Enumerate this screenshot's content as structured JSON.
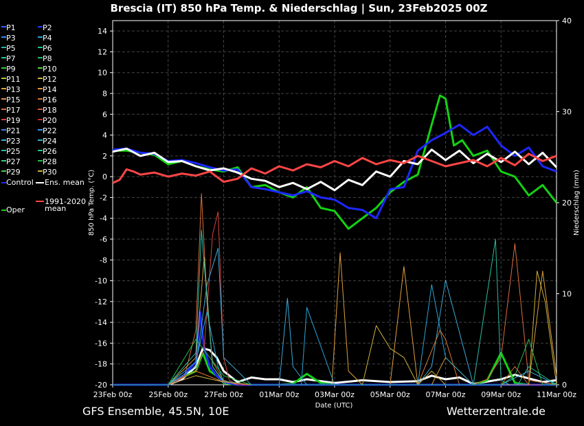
{
  "chart_data": {
    "type": "line",
    "title": "Brescia  (IT)  850 hPa Temp. & Niederschlag | Sun, 23Feb2025 00Z",
    "footer_left": "GFS Ensemble, 45.5N, 10E",
    "footer_right": "Wetterzentrale.de",
    "xlabel": "Date (UTC)",
    "ylabel": "850 hPa Temp. (°C)",
    "y2label": "Niederschlag (mm)",
    "ylim": [
      -20,
      15
    ],
    "y2lim": [
      0,
      40
    ],
    "xlim_days": [
      0,
      16
    ],
    "grid": true,
    "x_ticks": [
      {
        "day": 0,
        "label": "23Feb 00z"
      },
      {
        "day": 2,
        "label": "25Feb 00z"
      },
      {
        "day": 4,
        "label": "27Feb 00z"
      },
      {
        "day": 6,
        "label": "01Mar 00z"
      },
      {
        "day": 8,
        "label": "03Mar 00z"
      },
      {
        "day": 10,
        "label": "05Mar 00z"
      },
      {
        "day": 12,
        "label": "07Mar 00z"
      },
      {
        "day": 14,
        "label": "09Mar 00z"
      },
      {
        "day": 16,
        "label": "11Mar 00z"
      }
    ],
    "y_ticks": [
      -20,
      -18,
      -16,
      -14,
      -12,
      -10,
      -8,
      -6,
      -4,
      -2,
      0,
      2,
      4,
      6,
      8,
      10,
      12,
      14
    ],
    "y_tick_labels": [
      "-20",
      "-18",
      "-16",
      "-14",
      "-12",
      "-10",
      "-8",
      "-6",
      "-4",
      "-2",
      "0",
      "2",
      "4",
      "6",
      "8",
      "10",
      "12",
      "14"
    ],
    "y2_ticks": [
      0,
      10,
      20,
      30,
      40
    ],
    "y2_tick_labels": [
      "0",
      "10",
      "20",
      "30",
      "40"
    ],
    "legend_placement": "left",
    "legend": [
      {
        "label": "P1",
        "color": "#3c5cff"
      },
      {
        "label": "P2",
        "color": "#1f3cff"
      },
      {
        "label": "P3",
        "color": "#2a8cff"
      },
      {
        "label": "P4",
        "color": "#2aa6d8"
      },
      {
        "label": "P5",
        "color": "#26b4b4"
      },
      {
        "label": "P6",
        "color": "#19c88c"
      },
      {
        "label": "P7",
        "color": "#26c4a0"
      },
      {
        "label": "P8",
        "color": "#20c070"
      },
      {
        "label": "P9",
        "color": "#3ccc3c"
      },
      {
        "label": "P10",
        "color": "#5ad23c"
      },
      {
        "label": "P11",
        "color": "#b4c83c"
      },
      {
        "label": "P12",
        "color": "#d2b43c"
      },
      {
        "label": "P13",
        "color": "#e1a03c"
      },
      {
        "label": "P14",
        "color": "#e6963c"
      },
      {
        "label": "P15",
        "color": "#e68c46"
      },
      {
        "label": "P16",
        "color": "#dc7832"
      },
      {
        "label": "P17",
        "color": "#dc6e3c"
      },
      {
        "label": "P18",
        "color": "#d25a3c"
      },
      {
        "label": "P19",
        "color": "#d2463c"
      },
      {
        "label": "P20",
        "color": "#be3228"
      },
      {
        "label": "P21",
        "color": "#3c82dc"
      },
      {
        "label": "P22",
        "color": "#3c96e6"
      },
      {
        "label": "P23",
        "color": "#3caadc"
      },
      {
        "label": "P24",
        "color": "#32b4c8"
      },
      {
        "label": "P25",
        "color": "#2dbea0"
      },
      {
        "label": "P26",
        "color": "#28c88c"
      },
      {
        "label": "P27",
        "color": "#32d278"
      },
      {
        "label": "P28",
        "color": "#28be50"
      },
      {
        "label": "P29",
        "color": "#46d246"
      },
      {
        "label": "P30",
        "color": "#c8b43c"
      },
      {
        "label": "Control",
        "color": "#1e28ff"
      },
      {
        "label": "Ens. mean",
        "color": "#ffffff"
      },
      {
        "label": "Oper",
        "color": "#14d214"
      },
      {
        "label": "1991-2020 mean",
        "color": "#ff4646"
      }
    ],
    "series": [
      {
        "name": "Oper",
        "color": "#14d214",
        "x": [
          0,
          0.5,
          1,
          1.5,
          2,
          2.5,
          3,
          3.5,
          4,
          4.5,
          5,
          5.5,
          6,
          6.5,
          7,
          7.5,
          8,
          8.5,
          9,
          9.5,
          10,
          10.5,
          11,
          11.5,
          11.8,
          12,
          12.3,
          12.6,
          13,
          13.5,
          14,
          14.5,
          15,
          15.5,
          16
        ],
        "y": [
          2.5,
          2.5,
          2.3,
          2.1,
          1.2,
          1.5,
          1.0,
          0.7,
          0.5,
          0.9,
          -1.0,
          -0.8,
          -1.5,
          -2.0,
          -1.0,
          -3.0,
          -3.3,
          -5.0,
          -4.0,
          -3.0,
          -1.5,
          -0.5,
          0.2,
          5.0,
          7.8,
          7.5,
          3.0,
          3.5,
          2.0,
          2.5,
          0.5,
          0.0,
          -1.8,
          -0.8,
          -2.5
        ]
      },
      {
        "name": "Control",
        "color": "#1e28ff",
        "x": [
          0,
          0.5,
          1,
          1.5,
          2,
          2.5,
          3,
          3.5,
          4,
          4.5,
          5,
          5.5,
          6,
          6.5,
          7,
          7.5,
          8,
          8.5,
          9,
          9.5,
          10,
          10.5,
          11,
          11.5,
          12,
          12.5,
          13,
          13.5,
          14,
          14.5,
          15,
          15.5,
          16
        ],
        "y": [
          2.6,
          2.7,
          2.3,
          2.2,
          1.5,
          1.6,
          1.3,
          0.9,
          0.6,
          0.7,
          -1.0,
          -1.2,
          -1.5,
          -1.8,
          -1.4,
          -2.0,
          -2.2,
          -3.0,
          -3.2,
          -4.0,
          -1.2,
          -1.0,
          2.5,
          3.5,
          4.2,
          5.0,
          4.0,
          4.8,
          3.0,
          2.0,
          2.8,
          1.0,
          0.5
        ]
      },
      {
        "name": "Ens. mean",
        "color": "#ffffff",
        "x": [
          0,
          0.5,
          1,
          1.5,
          2,
          2.5,
          3,
          3.5,
          4,
          4.5,
          5,
          5.5,
          6,
          6.5,
          7,
          7.5,
          8,
          8.5,
          9,
          9.5,
          10,
          10.5,
          11,
          11.5,
          12,
          12.5,
          13,
          13.5,
          14,
          14.5,
          15,
          15.5,
          16
        ],
        "y": [
          2.4,
          2.7,
          2.0,
          2.3,
          1.4,
          1.5,
          1.0,
          0.6,
          0.8,
          0.4,
          -0.2,
          -0.4,
          -1.0,
          -0.6,
          -1.2,
          -0.5,
          -1.3,
          -0.3,
          -0.8,
          0.5,
          0.0,
          1.5,
          1.2,
          2.6,
          1.6,
          2.5,
          1.3,
          2.2,
          1.4,
          2.4,
          1.2,
          2.3,
          0.9
        ]
      },
      {
        "name": "1991-2020 mean",
        "color": "#ff4646",
        "x": [
          0,
          0.25,
          0.5,
          0.75,
          1,
          1.5,
          2,
          2.5,
          3,
          3.5,
          4,
          4.5,
          5,
          5.5,
          6,
          6.5,
          7,
          7.5,
          8,
          8.5,
          9,
          9.5,
          10,
          10.5,
          11,
          11.5,
          12,
          12.5,
          13,
          13.5,
          14,
          14.5,
          15,
          15.5,
          16
        ],
        "y": [
          -0.6,
          -0.3,
          0.7,
          0.5,
          0.2,
          0.4,
          0.0,
          0.3,
          0.1,
          0.5,
          -0.5,
          -0.2,
          0.8,
          0.3,
          1.0,
          0.6,
          1.2,
          0.9,
          1.5,
          1.0,
          1.8,
          1.2,
          1.6,
          1.3,
          2.0,
          1.5,
          1.0,
          1.3,
          1.6,
          1.0,
          1.8,
          1.1,
          2.2,
          1.5,
          2.0
        ]
      }
    ],
    "precip_series": [
      {
        "name": "Ens. mean",
        "color": "#ffffff",
        "x": [
          0,
          1,
          2,
          2.5,
          3,
          3.25,
          3.5,
          3.75,
          4,
          4.5,
          5,
          5.5,
          6,
          6.5,
          7,
          8,
          9,
          10,
          11,
          11.5,
          12,
          12.5,
          13,
          14,
          14.5,
          15,
          15.5,
          16
        ],
        "y": [
          0,
          0,
          0,
          0.6,
          2.0,
          4.0,
          3.8,
          3.0,
          1.5,
          0.3,
          0.8,
          0.6,
          0.6,
          0.3,
          0.6,
          0.2,
          0.5,
          0.3,
          0.4,
          1.0,
          0.6,
          0.8,
          0.1,
          0.6,
          1.1,
          0.7,
          0.3,
          0.5
        ]
      },
      {
        "name": "Oper",
        "color": "#14d214",
        "x": [
          0,
          1,
          2,
          2.5,
          3,
          3.25,
          3.5,
          3.75,
          4,
          4.5,
          5,
          6,
          6.5,
          7,
          7.5,
          8,
          9,
          10,
          11,
          12,
          13,
          13.5,
          14,
          14.5,
          15,
          15.5,
          16
        ],
        "y": [
          0,
          0,
          0,
          0.8,
          1.5,
          3.5,
          1.5,
          1.0,
          0.2,
          0,
          0,
          0,
          0.1,
          1.2,
          0.2,
          0,
          0,
          0,
          0,
          0,
          0,
          0.5,
          3.5,
          0.2,
          0,
          0,
          0.1
        ]
      },
      {
        "name": "Control",
        "color": "#1e28ff",
        "x": [
          0,
          1,
          2,
          2.5,
          3,
          3.15,
          3.3,
          3.5,
          3.75,
          4,
          4.5,
          5,
          6,
          7,
          8,
          9,
          10,
          11,
          12,
          13,
          14,
          15,
          16
        ],
        "y": [
          0,
          0,
          0,
          0.8,
          2.5,
          8.0,
          4.0,
          2.0,
          1.0,
          0.3,
          0,
          0,
          0,
          0,
          0,
          0,
          0,
          0,
          0,
          0,
          0,
          0,
          0
        ]
      },
      {
        "name": "P17",
        "color": "#dc6e3c",
        "x": [
          0,
          2,
          2.6,
          3,
          3.2,
          3.4,
          3.6,
          4,
          4.5,
          5,
          6,
          7,
          8,
          9,
          10,
          11,
          12,
          13,
          13.5,
          14,
          14.5,
          15,
          16
        ],
        "y": [
          0,
          0,
          1.0,
          6.0,
          21.0,
          9.0,
          2.5,
          0.5,
          0,
          0,
          0,
          0,
          0,
          0,
          0,
          0,
          0,
          0,
          0.6,
          3.0,
          15.5,
          0.5,
          0
        ]
      },
      {
        "name": "P19",
        "color": "#d2463c",
        "x": [
          0,
          2,
          3,
          3.3,
          3.6,
          3.8,
          4,
          4.2,
          4.5,
          5,
          6,
          8,
          10,
          11,
          12,
          13,
          14,
          15,
          16
        ],
        "y": [
          0,
          0,
          1.5,
          4.0,
          16.5,
          19.0,
          3.0,
          0.5,
          0,
          0,
          0,
          0,
          0,
          0,
          0,
          0,
          0,
          0,
          0
        ]
      },
      {
        "name": "P13",
        "color": "#e1a03c",
        "x": [
          0,
          2,
          3,
          3.3,
          3.6,
          4,
          5,
          7,
          7.9,
          8.2,
          8.5,
          9,
          10,
          10.5,
          11,
          11.5,
          12,
          13,
          14,
          15,
          15.5,
          16
        ],
        "y": [
          0,
          0,
          3.0,
          14.0,
          2.0,
          0.3,
          0,
          0,
          0,
          14.5,
          1.5,
          0,
          0,
          13.0,
          0,
          0,
          3.0,
          0,
          0,
          0,
          12.5,
          1.0
        ]
      },
      {
        "name": "P23",
        "color": "#3caadc",
        "x": [
          0,
          2,
          3,
          3.4,
          3.8,
          4,
          5,
          5.8,
          6,
          6.3,
          6.5,
          7,
          8,
          9,
          10,
          11,
          11.5,
          12,
          13,
          14,
          15,
          16
        ],
        "y": [
          0,
          0,
          2.0,
          11.0,
          15.0,
          3.0,
          0,
          0,
          0,
          9.5,
          2.0,
          0,
          0,
          0,
          0,
          0,
          2.0,
          11.5,
          0,
          0,
          1.5,
          0
        ]
      },
      {
        "name": "P4",
        "color": "#2aa6d8",
        "x": [
          0,
          2,
          3,
          3.4,
          3.8,
          4,
          5,
          6,
          6.8,
          7,
          8,
          9,
          10,
          11,
          11.5,
          12,
          13,
          14,
          15,
          16
        ],
        "y": [
          0,
          0,
          2.5,
          8.0,
          2.0,
          0.3,
          0,
          0,
          0,
          8.5,
          0,
          0,
          0,
          0,
          11.0,
          3.0,
          0,
          0,
          0,
          0
        ]
      },
      {
        "name": "P25",
        "color": "#2dbea0",
        "x": [
          0,
          2,
          3,
          3.2,
          3.6,
          4,
          5,
          6,
          7,
          8,
          9,
          10,
          11,
          12,
          13,
          13.8,
          14,
          14.3,
          14.6,
          15,
          16
        ],
        "y": [
          0,
          0,
          3.5,
          17.0,
          2.0,
          0.4,
          0,
          0,
          0,
          0,
          0,
          0,
          0,
          0,
          0,
          16.0,
          0.5,
          0,
          0,
          2.0,
          0
        ]
      },
      {
        "name": "P12",
        "color": "#d2b43c",
        "x": [
          0,
          2,
          3,
          4,
          5,
          6,
          7,
          8,
          9,
          9.5,
          10,
          10.5,
          11,
          11.5,
          12,
          13,
          14,
          14.5,
          15,
          15.3,
          15.6,
          16
        ],
        "y": [
          0,
          0,
          1.0,
          0.3,
          0,
          0,
          0,
          0,
          0,
          6.5,
          4.0,
          3.0,
          0,
          1.5,
          0,
          0,
          0,
          0,
          0,
          12.5,
          9.0,
          0
        ]
      },
      {
        "name": "P16",
        "color": "#dc7832",
        "x": [
          0,
          2,
          3,
          4,
          5,
          6,
          7,
          8,
          9,
          10,
          11,
          11.8,
          12,
          12.5,
          13,
          14,
          14.5,
          15,
          16
        ],
        "y": [
          0,
          0,
          1.5,
          0.3,
          0,
          0,
          0,
          0,
          0,
          0,
          0,
          6.0,
          5.0,
          0,
          0,
          0,
          2.0,
          0,
          0
        ]
      },
      {
        "name": "P28",
        "color": "#28be50",
        "x": [
          0,
          2,
          3,
          4,
          5,
          6,
          7,
          8,
          9,
          10,
          11,
          12,
          13,
          14,
          14.5,
          15,
          15.5,
          16
        ],
        "y": [
          0,
          0,
          5.0,
          1.0,
          0,
          0,
          0,
          0,
          0,
          0,
          0,
          0,
          0,
          0,
          1.0,
          5.0,
          0,
          0
        ]
      }
    ]
  }
}
